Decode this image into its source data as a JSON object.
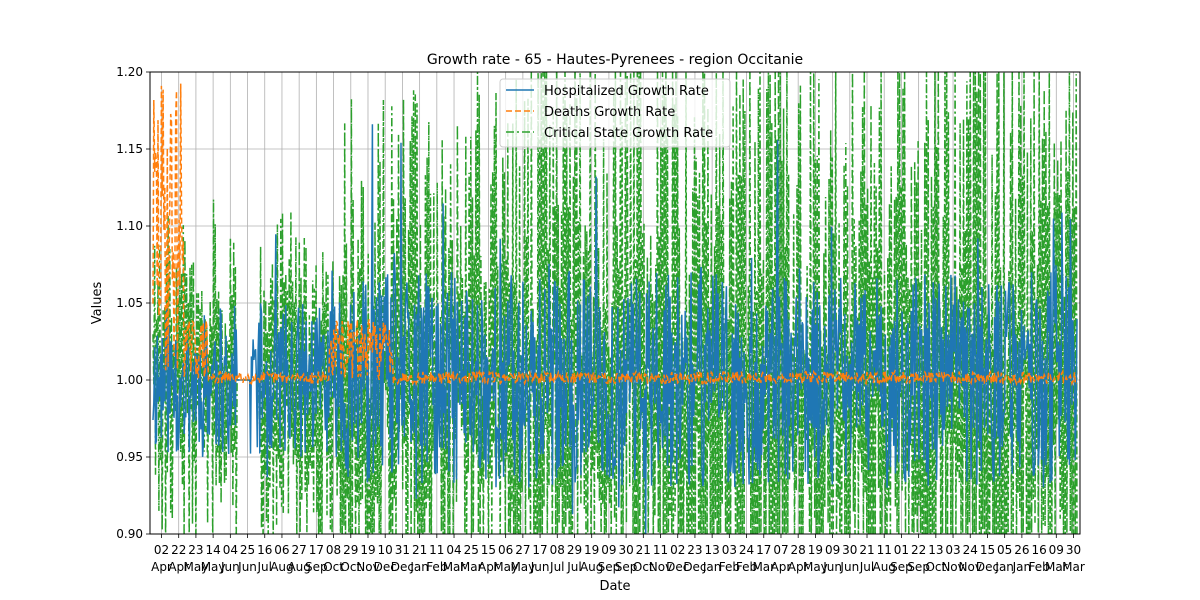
{
  "chart_data": {
    "type": "line",
    "title": "Growth rate - 65 - Hautes-Pyrenees - region Occitanie",
    "xlabel": "Date",
    "ylabel": "Values",
    "ylim": [
      0.9,
      1.2
    ],
    "yticks": [
      "0.90",
      "0.95",
      "1.00",
      "1.05",
      "1.10",
      "1.15",
      "1.20"
    ],
    "grid": true,
    "legend_position": "top-center",
    "x_tick_labels": [
      {
        "day": "02",
        "month": "Apr"
      },
      {
        "day": "22",
        "month": "Apr"
      },
      {
        "day": "23",
        "month": "May"
      },
      {
        "day": "14",
        "month": "May"
      },
      {
        "day": "04",
        "month": "Jun"
      },
      {
        "day": "25",
        "month": "Jun"
      },
      {
        "day": "16",
        "month": "Jul"
      },
      {
        "day": "06",
        "month": "Aug"
      },
      {
        "day": "27",
        "month": "Aug"
      },
      {
        "day": "17",
        "month": "Sep"
      },
      {
        "day": "08",
        "month": "Oct"
      },
      {
        "day": "29",
        "month": "Oct"
      },
      {
        "day": "19",
        "month": "Nov"
      },
      {
        "day": "10",
        "month": "Dec"
      },
      {
        "day": "31",
        "month": "Dec"
      },
      {
        "day": "21",
        "month": "Jan"
      },
      {
        "day": "11",
        "month": "Feb"
      },
      {
        "day": "04",
        "month": "Mar"
      },
      {
        "day": "25",
        "month": "Mar"
      },
      {
        "day": "15",
        "month": "Apr"
      },
      {
        "day": "06",
        "month": "May"
      },
      {
        "day": "27",
        "month": "May"
      },
      {
        "day": "17",
        "month": "Jun"
      },
      {
        "day": "08",
        "month": "Jul"
      },
      {
        "day": "29",
        "month": "Jul"
      },
      {
        "day": "19",
        "month": "Aug"
      },
      {
        "day": "09",
        "month": "Sep"
      },
      {
        "day": "30",
        "month": "Sep"
      },
      {
        "day": "21",
        "month": "Oct"
      },
      {
        "day": "11",
        "month": "Nov"
      },
      {
        "day": "02",
        "month": "Dec"
      },
      {
        "day": "23",
        "month": "Dec"
      },
      {
        "day": "13",
        "month": "Jan"
      },
      {
        "day": "03",
        "month": "Feb"
      },
      {
        "day": "24",
        "month": "Feb"
      },
      {
        "day": "17",
        "month": "Mar"
      },
      {
        "day": "07",
        "month": "Apr"
      },
      {
        "day": "28",
        "month": "Apr"
      },
      {
        "day": "19",
        "month": "May"
      },
      {
        "day": "09",
        "month": "Jun"
      },
      {
        "day": "30",
        "month": "Jun"
      },
      {
        "day": "21",
        "month": "Jul"
      },
      {
        "day": "11",
        "month": "Aug"
      },
      {
        "day": "01",
        "month": "Sep"
      },
      {
        "day": "22",
        "month": "Sep"
      },
      {
        "day": "13",
        "month": "Oct"
      },
      {
        "day": "03",
        "month": "Nov"
      },
      {
        "day": "24",
        "month": "Nov"
      },
      {
        "day": "15",
        "month": "Dec"
      },
      {
        "day": "05",
        "month": "Jan"
      },
      {
        "day": "26",
        "month": "Jan"
      },
      {
        "day": "16",
        "month": "Feb"
      },
      {
        "day": "09",
        "month": "Mar"
      },
      {
        "day": "30",
        "month": "Mar"
      }
    ],
    "series": [
      {
        "name": "Hospitalized Growth Rate",
        "color": "#1f77b4",
        "dash": "solid"
      },
      {
        "name": "Deaths Growth Rate",
        "color": "#ff7f0e",
        "dash": "dashed"
      },
      {
        "name": "Critical State Growth Rate",
        "color": "#2ca02c",
        "dash": "dashdot"
      }
    ],
    "series_values_note_free": true
  }
}
